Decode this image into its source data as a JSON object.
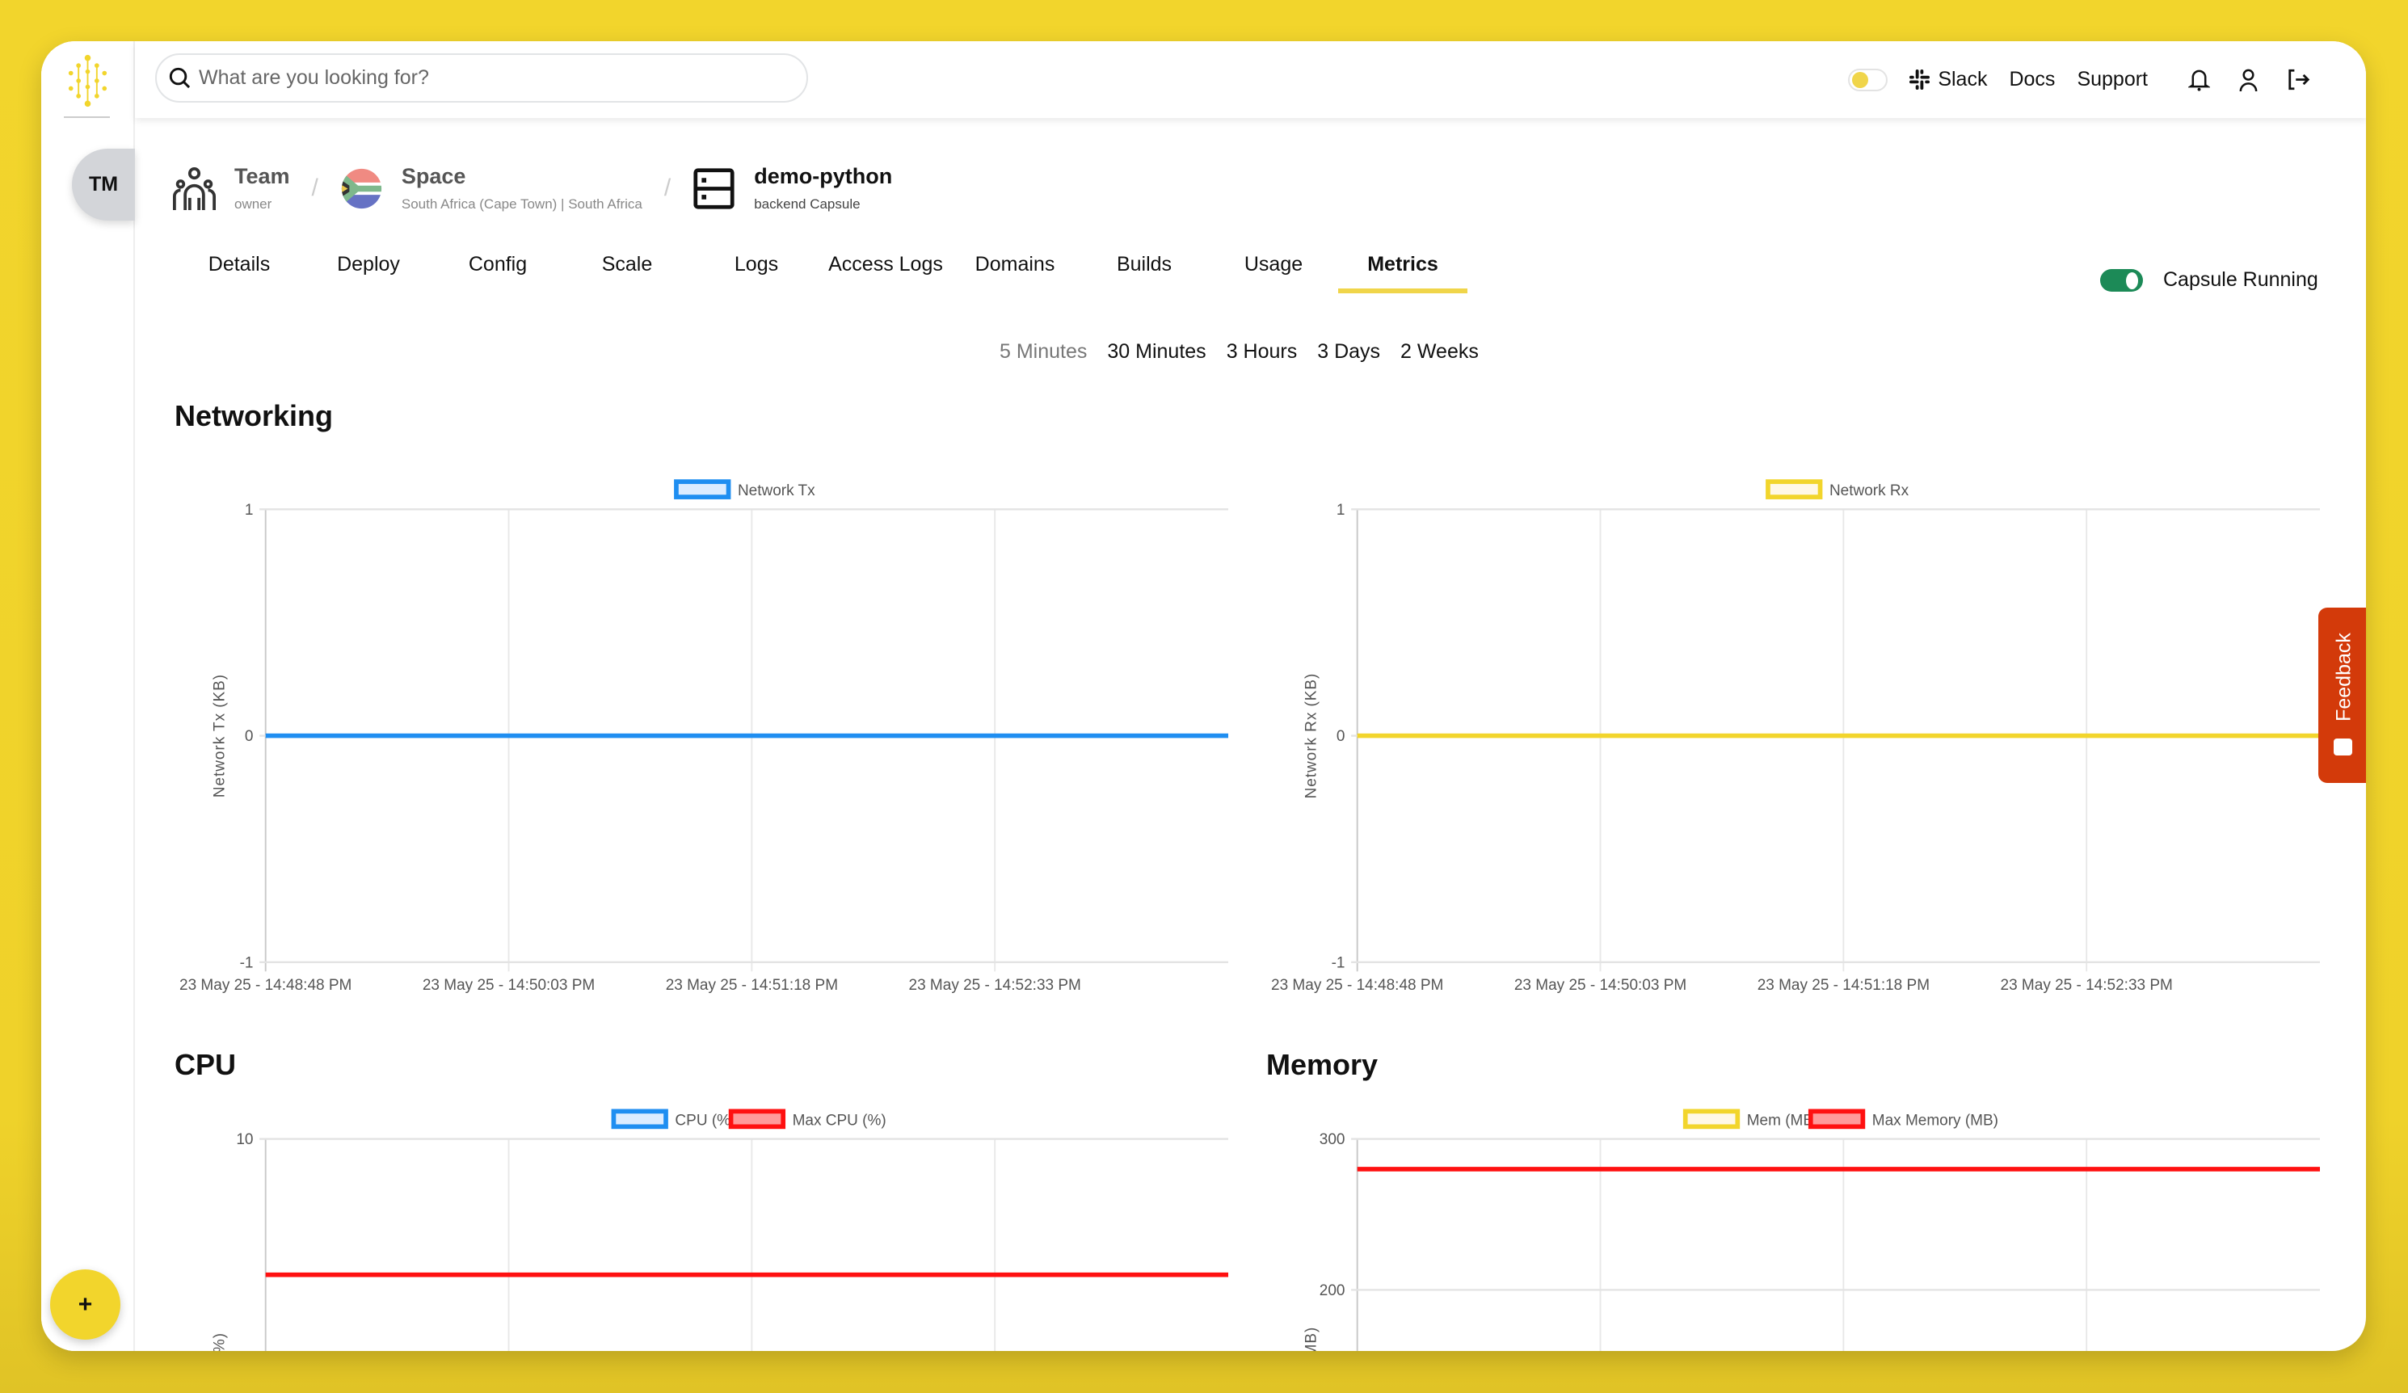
{
  "sidebar": {
    "team_initials": "TM",
    "add_label": "+"
  },
  "header": {
    "search_placeholder": "What are you looking for?",
    "links": {
      "slack": "Slack",
      "docs": "Docs",
      "support": "Support"
    },
    "icons": [
      "search-icon",
      "theme-toggle",
      "slack-icon",
      "bell-icon",
      "user-icon",
      "logout-icon"
    ]
  },
  "breadcrumb": {
    "team": {
      "title": "Team",
      "sub": "owner"
    },
    "space": {
      "title": "Space",
      "sub": "South Africa (Cape Town) | South Africa"
    },
    "capsule": {
      "title": "demo-python",
      "sub": "backend Capsule"
    }
  },
  "tabs": [
    "Details",
    "Deploy",
    "Config",
    "Scale",
    "Logs",
    "Access Logs",
    "Domains",
    "Builds",
    "Usage",
    "Metrics"
  ],
  "active_tab": "Metrics",
  "status": {
    "label": "Capsule Running",
    "running": true,
    "color": "#1c8a57"
  },
  "time_ranges": {
    "items": [
      "5 Minutes",
      "30 Minutes",
      "3 Hours",
      "3 Days",
      "2 Weeks"
    ],
    "selected": "5 Minutes"
  },
  "sections": {
    "networking": "Networking",
    "cpu": "CPU",
    "memory": "Memory"
  },
  "feedback": {
    "label": "Feedback",
    "color": "#d33a0a"
  },
  "accent": "#f2d52c",
  "chart_data": [
    {
      "id": "tx",
      "type": "line",
      "ylabel": "Network Tx (KB)",
      "ylim": [
        -1,
        1
      ],
      "yticks": [
        1,
        0,
        -1
      ],
      "xticks": [
        "23 May 25 - 14:48:48 PM",
        "23 May 25 - 14:50:03 PM",
        "23 May 25 - 14:51:18 PM",
        "23 May 25 - 14:52:33 PM"
      ],
      "grid": true,
      "legend": "top",
      "series": [
        {
          "name": "Network Tx",
          "color": "#1f8ef1",
          "values": [
            0,
            0,
            0,
            0,
            0
          ]
        }
      ]
    },
    {
      "id": "rx",
      "type": "line",
      "ylabel": "Network Rx (KB)",
      "ylim": [
        -1,
        1
      ],
      "yticks": [
        1,
        0,
        -1
      ],
      "xticks": [
        "23 May 25 - 14:48:48 PM",
        "23 May 25 - 14:50:03 PM",
        "23 May 25 - 14:51:18 PM",
        "23 May 25 - 14:52:33 PM"
      ],
      "grid": true,
      "legend": "top",
      "series": [
        {
          "name": "Network Rx",
          "color": "#f2d52c",
          "values": [
            0,
            0,
            0,
            0,
            0
          ]
        }
      ]
    },
    {
      "id": "cpu",
      "type": "line",
      "ylabel": "CPU (%)",
      "ylim": [
        0,
        10
      ],
      "yticks": [
        10
      ],
      "xticks": [],
      "grid": true,
      "legend": "top",
      "series": [
        {
          "name": "CPU (%)",
          "color": "#1f8ef1",
          "values": []
        },
        {
          "name": "Max CPU (%)",
          "color": "#ff1010",
          "values": [
            7,
            7,
            7,
            7,
            7
          ]
        }
      ]
    },
    {
      "id": "mem",
      "type": "line",
      "ylabel": "Mem (MB)",
      "ylim": [
        0,
        300
      ],
      "yticks": [
        300,
        200
      ],
      "xticks": [],
      "grid": true,
      "legend": "top",
      "series": [
        {
          "name": "Mem (MB)",
          "color": "#f2d52c",
          "values": []
        },
        {
          "name": "Max Memory (MB)",
          "color": "#ff1010",
          "values": [
            280,
            280,
            280,
            280,
            280
          ]
        }
      ]
    }
  ]
}
